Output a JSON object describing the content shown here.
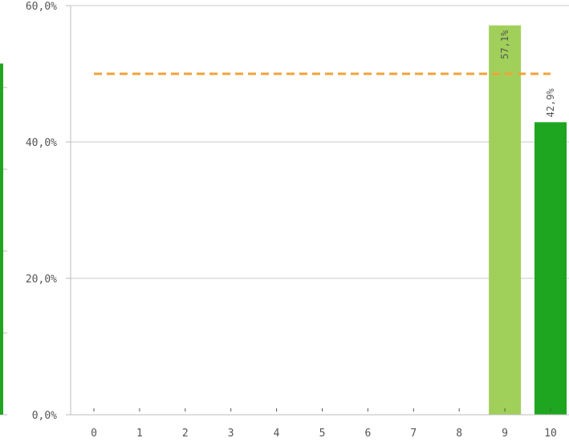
{
  "chart_data": {
    "type": "bar",
    "categories": [
      "0",
      "1",
      "2",
      "3",
      "4",
      "5",
      "6",
      "7",
      "8",
      "9",
      "10"
    ],
    "values": [
      0,
      0,
      0,
      0,
      0,
      0,
      0,
      0,
      0,
      57.1,
      42.9
    ],
    "data_labels": [
      "",
      "",
      "",
      "",
      "",
      "",
      "",
      "",
      "",
      "57,1%",
      "42,9%"
    ],
    "bar_colors": [
      "#1ea620",
      "#1ea620",
      "#1ea620",
      "#1ea620",
      "#1ea620",
      "#1ea620",
      "#1ea620",
      "#1ea620",
      "#1ea620",
      "#a1d05a",
      "#1ea620"
    ],
    "y_ticks": [
      {
        "value": 0,
        "label": "0,0%"
      },
      {
        "value": 20,
        "label": "20,0%"
      },
      {
        "value": 40,
        "label": "40,0%"
      },
      {
        "value": 60,
        "label": "60,0%"
      }
    ],
    "ylim": [
      0,
      60
    ],
    "reference_line": {
      "value": 50,
      "color": "#f0a33a",
      "style": "dashed"
    },
    "grid": true,
    "xlabel": "",
    "ylabel": "",
    "title": ""
  },
  "left_partial_bar": {
    "value": 51.5,
    "color": "#1ea620"
  }
}
